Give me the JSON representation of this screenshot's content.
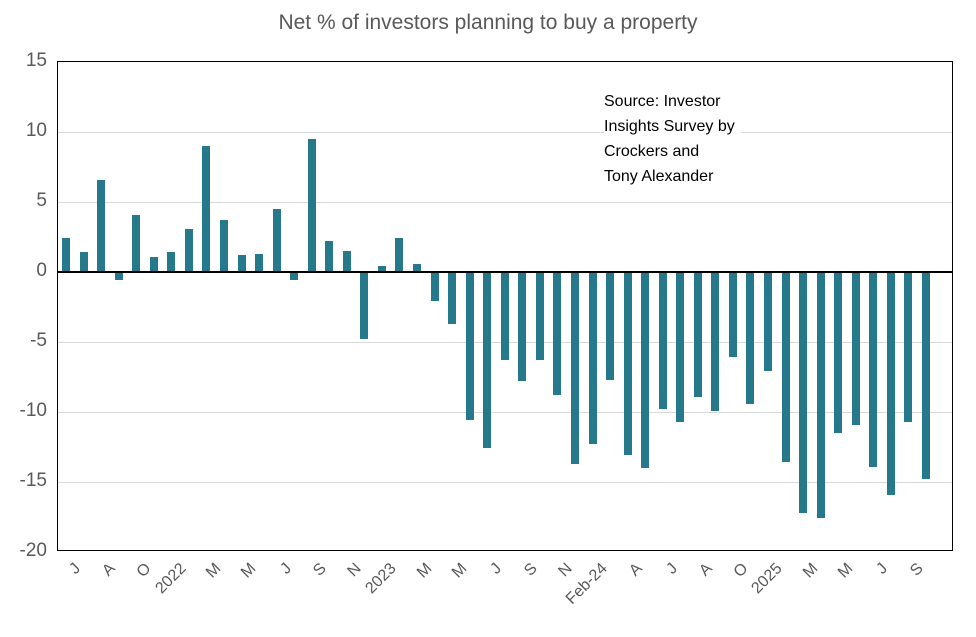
{
  "chart_data": {
    "type": "bar",
    "title": "Net % of investors planning to buy a property",
    "xlabel": "",
    "ylabel": "",
    "ylim": [
      -20,
      15
    ],
    "y_ticks": [
      15,
      10,
      5,
      0,
      -5,
      -10,
      -15,
      -20
    ],
    "grid": true,
    "legend": false,
    "tick_every": 2,
    "x_tick_labels": [
      "J",
      "A",
      "O",
      "2022",
      "M",
      "M",
      "J",
      "S",
      "N",
      "2023",
      "M",
      "M",
      "J",
      "S",
      "N",
      "Feb-24",
      "A",
      "J",
      "A",
      "O",
      "2025",
      "M",
      "M",
      "J",
      "S"
    ],
    "values": [
      2.4,
      1.4,
      6.6,
      -0.6,
      4.1,
      1.1,
      1.4,
      3.1,
      9.0,
      3.7,
      1.2,
      1.3,
      4.5,
      -0.6,
      9.5,
      2.2,
      1.5,
      -4.8,
      0.4,
      2.4,
      0.6,
      -2.1,
      -3.7,
      -10.6,
      -12.6,
      -6.3,
      -7.8,
      -6.3,
      -8.8,
      -13.7,
      -12.3,
      -7.7,
      -13.1,
      -14.0,
      -9.8,
      -10.7,
      -8.9,
      -9.9,
      -6.1,
      -9.4,
      -7.1,
      -13.6,
      -17.2,
      -17.6,
      -11.5,
      -10.9,
      -13.9,
      -15.9,
      -10.7,
      -14.8
    ],
    "annotation": {
      "lines": [
        "Source: Investor",
        "Insights Survey by",
        "Crockers and",
        "Tony Alexander"
      ]
    },
    "colors": {
      "bar": "#26798b",
      "grid": "#d9d9d9",
      "axis_text": "#595959",
      "zero_line": "#000000",
      "annotation_text": "#000000"
    }
  }
}
